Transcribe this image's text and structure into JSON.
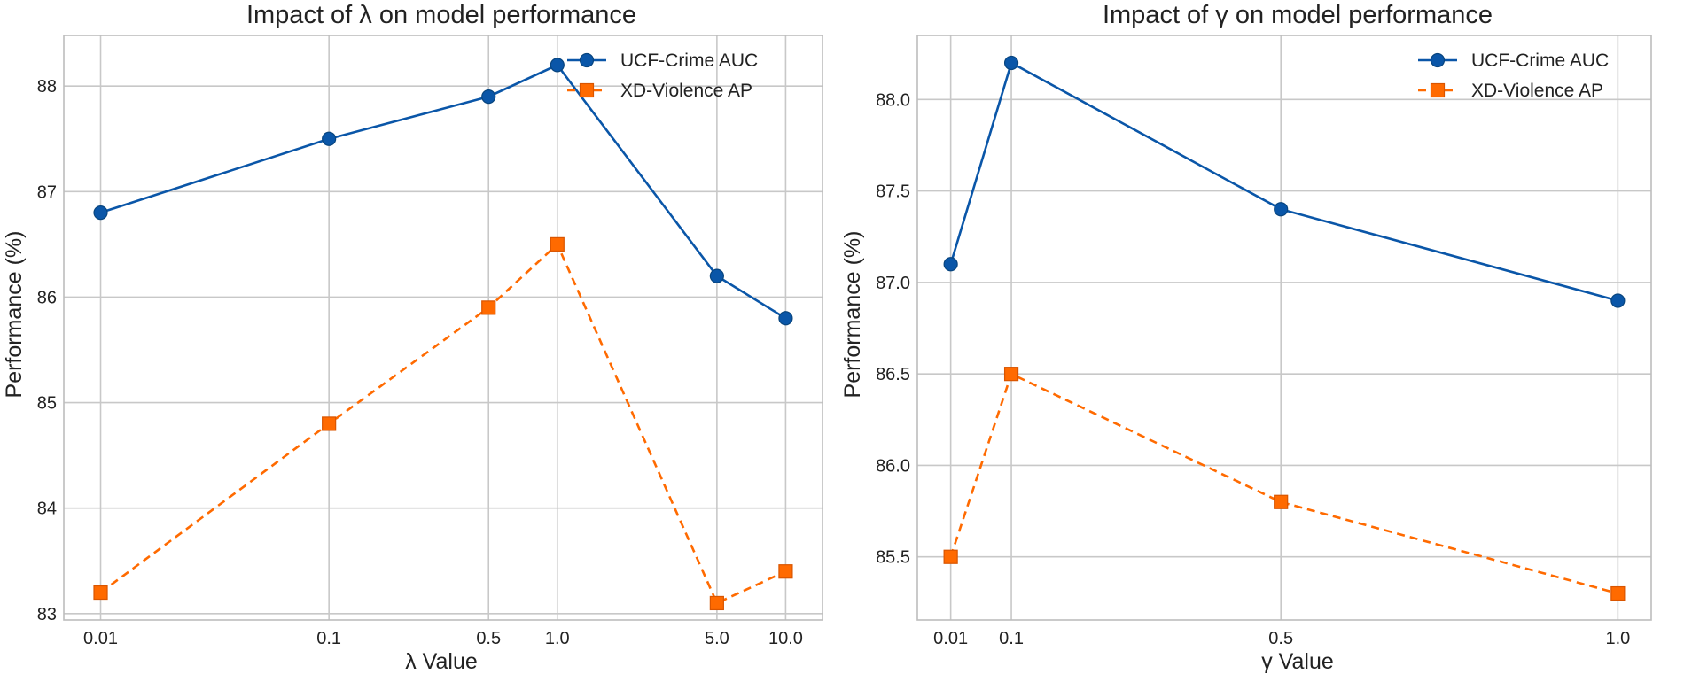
{
  "chart_data": [
    {
      "type": "line",
      "title": "Impact of λ on model performance",
      "xlabel": "λ Value",
      "ylabel": "Performance (%)",
      "x_scale": "log",
      "categories": [
        "0.01",
        "0.1",
        "0.5",
        "1.0",
        "5.0",
        "10.0"
      ],
      "x": [
        0.01,
        0.1,
        0.5,
        1.0,
        5.0,
        10.0
      ],
      "xlim": [
        0.0069,
        14.5
      ],
      "ylim": [
        82.94,
        88.48
      ],
      "yticks": [
        83,
        84,
        85,
        86,
        87,
        88
      ],
      "ytick_labels": [
        "83",
        "84",
        "85",
        "86",
        "87",
        "88"
      ],
      "grid": true,
      "legend": "top-right",
      "series": [
        {
          "name": "UCF-Crime AUC",
          "values": [
            86.8,
            87.5,
            87.9,
            88.2,
            86.2,
            85.8
          ],
          "color": "#0a56a8",
          "marker": "circle",
          "linestyle": "solid"
        },
        {
          "name": "XD-Violence AP",
          "values": [
            83.2,
            84.8,
            85.9,
            86.5,
            83.1,
            83.4
          ],
          "color": "#ff6a00",
          "marker": "square",
          "linestyle": "dashed"
        }
      ]
    },
    {
      "type": "line",
      "title": "Impact of γ on model performance",
      "xlabel": "γ Value",
      "ylabel": "Performance (%)",
      "x_scale": "linear",
      "categories": [
        "0.01",
        "0.1",
        "0.5",
        "1.0"
      ],
      "x": [
        0.01,
        0.1,
        0.5,
        1.0
      ],
      "xlim": [
        -0.0395,
        1.0495
      ],
      "ylim": [
        85.155,
        88.35
      ],
      "yticks": [
        85.5,
        86.0,
        86.5,
        87.0,
        87.5,
        88.0
      ],
      "ytick_labels": [
        "85.5",
        "86.0",
        "86.5",
        "87.0",
        "87.5",
        "88.0"
      ],
      "grid": true,
      "legend": "top-right",
      "series": [
        {
          "name": "UCF-Crime AUC",
          "values": [
            87.1,
            88.2,
            87.4,
            86.9
          ],
          "color": "#0a56a8",
          "marker": "circle",
          "linestyle": "solid"
        },
        {
          "name": "XD-Violence AP",
          "values": [
            85.5,
            86.5,
            85.8,
            85.3
          ],
          "color": "#ff6a00",
          "marker": "square",
          "linestyle": "dashed"
        }
      ]
    }
  ]
}
